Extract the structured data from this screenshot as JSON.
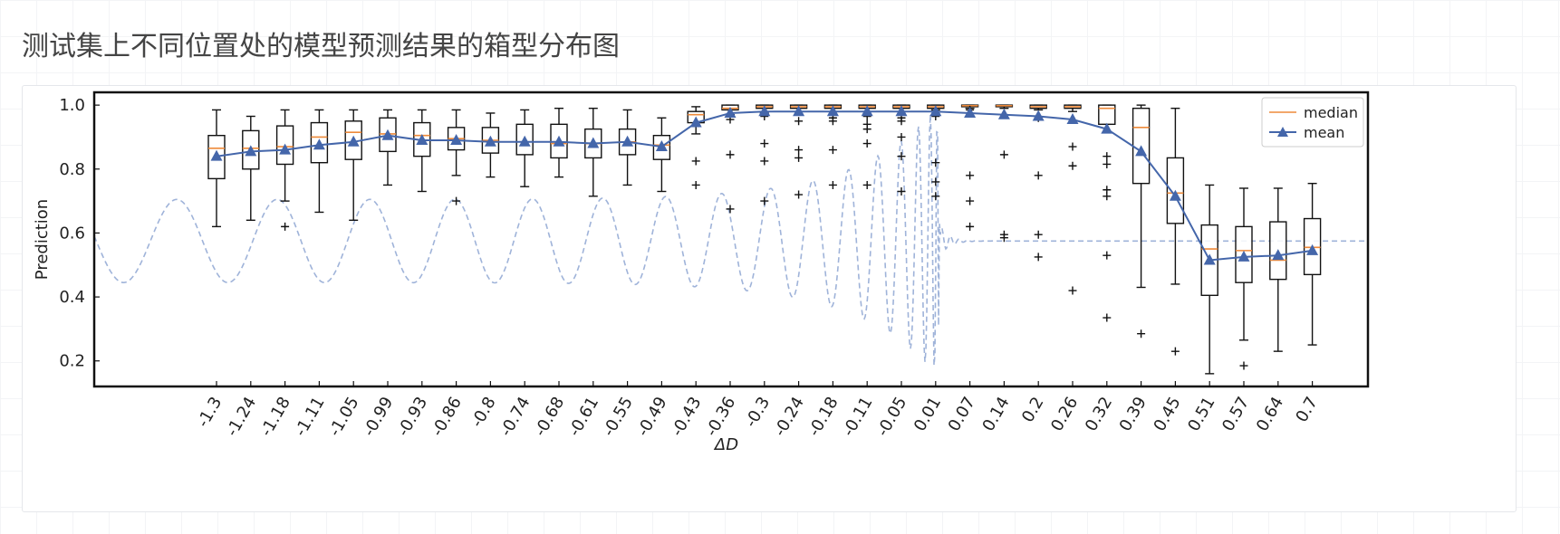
{
  "page": {
    "title": "测试集上不同位置处的模型预测结果的箱型分布图"
  },
  "chart_data": {
    "type": "box",
    "xlabel": "ΔD",
    "ylabel": "Prediction",
    "ylim": [
      0.12,
      1.04
    ],
    "yticks": [
      "0.2",
      "0.4",
      "0.6",
      "0.8",
      "1.0"
    ],
    "colors": {
      "median": "#ee8a3a",
      "mean": "#4466aa",
      "background_wave": "#9fb3d9"
    },
    "legend": {
      "position": "top-right",
      "entries": [
        "median",
        "mean"
      ]
    },
    "categories": [
      "-1.3",
      "-1.24",
      "-1.18",
      "-1.11",
      "-1.05",
      "-0.99",
      "-0.93",
      "-0.86",
      "-0.8",
      "-0.74",
      "-0.68",
      "-0.61",
      "-0.55",
      "-0.49",
      "-0.43",
      "-0.36",
      "-0.3",
      "-0.24",
      "-0.18",
      "-0.11",
      "-0.05",
      "0.01",
      "0.07",
      "0.14",
      "0.2",
      "0.26",
      "0.32",
      "0.39",
      "0.45",
      "0.51",
      "0.57",
      "0.64",
      "0.7"
    ],
    "boxes": [
      {
        "wlo": 0.62,
        "q1": 0.77,
        "med": 0.865,
        "q3": 0.905,
        "whi": 0.985,
        "mean": 0.84,
        "out": []
      },
      {
        "wlo": 0.64,
        "q1": 0.8,
        "med": 0.865,
        "q3": 0.92,
        "whi": 0.965,
        "mean": 0.855,
        "out": []
      },
      {
        "wlo": 0.7,
        "q1": 0.815,
        "med": 0.87,
        "q3": 0.935,
        "whi": 0.985,
        "mean": 0.86,
        "out": [
          0.62
        ]
      },
      {
        "wlo": 0.665,
        "q1": 0.82,
        "med": 0.9,
        "q3": 0.945,
        "whi": 0.985,
        "mean": 0.875,
        "out": []
      },
      {
        "wlo": 0.64,
        "q1": 0.83,
        "med": 0.915,
        "q3": 0.95,
        "whi": 0.985,
        "mean": 0.885,
        "out": []
      },
      {
        "wlo": 0.75,
        "q1": 0.855,
        "med": 0.91,
        "q3": 0.96,
        "whi": 0.985,
        "mean": 0.905,
        "out": []
      },
      {
        "wlo": 0.73,
        "q1": 0.84,
        "med": 0.905,
        "q3": 0.945,
        "whi": 0.985,
        "mean": 0.89,
        "out": []
      },
      {
        "wlo": 0.78,
        "q1": 0.86,
        "med": 0.895,
        "q3": 0.93,
        "whi": 0.985,
        "mean": 0.89,
        "out": [
          0.7
        ]
      },
      {
        "wlo": 0.775,
        "q1": 0.85,
        "med": 0.89,
        "q3": 0.93,
        "whi": 0.975,
        "mean": 0.885,
        "out": []
      },
      {
        "wlo": 0.745,
        "q1": 0.845,
        "med": 0.885,
        "q3": 0.94,
        "whi": 0.985,
        "mean": 0.885,
        "out": []
      },
      {
        "wlo": 0.775,
        "q1": 0.835,
        "med": 0.88,
        "q3": 0.94,
        "whi": 0.99,
        "mean": 0.885,
        "out": []
      },
      {
        "wlo": 0.715,
        "q1": 0.835,
        "med": 0.88,
        "q3": 0.925,
        "whi": 0.99,
        "mean": 0.88,
        "out": []
      },
      {
        "wlo": 0.75,
        "q1": 0.845,
        "med": 0.885,
        "q3": 0.925,
        "whi": 0.985,
        "mean": 0.885,
        "out": []
      },
      {
        "wlo": 0.73,
        "q1": 0.83,
        "med": 0.875,
        "q3": 0.905,
        "whi": 0.96,
        "mean": 0.87,
        "out": []
      },
      {
        "wlo": 0.91,
        "q1": 0.945,
        "med": 0.97,
        "q3": 0.98,
        "whi": 0.995,
        "mean": 0.945,
        "out": [
          0.825,
          0.75
        ]
      },
      {
        "wlo": 0.97,
        "q1": 0.985,
        "med": 0.99,
        "q3": 1.0,
        "whi": 1.0,
        "mean": 0.975,
        "out": [
          0.955,
          0.845,
          0.675
        ]
      },
      {
        "wlo": 0.975,
        "q1": 0.99,
        "med": 0.995,
        "q3": 1.0,
        "whi": 1.0,
        "mean": 0.98,
        "out": [
          0.965,
          0.88,
          0.825,
          0.7
        ]
      },
      {
        "wlo": 0.98,
        "q1": 0.99,
        "med": 0.995,
        "q3": 1.0,
        "whi": 1.0,
        "mean": 0.98,
        "out": [
          0.95,
          0.86,
          0.835,
          0.72
        ]
      },
      {
        "wlo": 0.98,
        "q1": 0.99,
        "med": 0.995,
        "q3": 1.0,
        "whi": 1.0,
        "mean": 0.98,
        "out": [
          0.96,
          0.95,
          0.86,
          0.75
        ]
      },
      {
        "wlo": 0.98,
        "q1": 0.99,
        "med": 0.995,
        "q3": 1.0,
        "whi": 1.0,
        "mean": 0.98,
        "out": [
          0.965,
          0.94,
          0.925,
          0.88,
          0.75
        ]
      },
      {
        "wlo": 0.98,
        "q1": 0.99,
        "med": 0.995,
        "q3": 1.0,
        "whi": 1.0,
        "mean": 0.98,
        "out": [
          0.96,
          0.95,
          0.9,
          0.84,
          0.73
        ]
      },
      {
        "wlo": 0.985,
        "q1": 0.99,
        "med": 0.995,
        "q3": 1.0,
        "whi": 1.0,
        "mean": 0.98,
        "out": [
          0.965,
          0.82,
          0.76,
          0.715
        ]
      },
      {
        "wlo": 0.99,
        "q1": 0.995,
        "med": 0.998,
        "q3": 1.0,
        "whi": 1.0,
        "mean": 0.975,
        "out": [
          0.985,
          0.78,
          0.7,
          0.62
        ]
      },
      {
        "wlo": 0.99,
        "q1": 0.995,
        "med": 0.998,
        "q3": 1.0,
        "whi": 1.0,
        "mean": 0.97,
        "out": [
          0.845,
          0.595,
          0.585
        ]
      },
      {
        "wlo": 0.985,
        "q1": 0.99,
        "med": 0.995,
        "q3": 1.0,
        "whi": 1.0,
        "mean": 0.965,
        "out": [
          0.96,
          0.78,
          0.595,
          0.525
        ]
      },
      {
        "wlo": 0.98,
        "q1": 0.99,
        "med": 0.995,
        "q3": 1.0,
        "whi": 1.0,
        "mean": 0.955,
        "out": [
          0.87,
          0.81,
          0.42
        ]
      },
      {
        "wlo": 0.94,
        "q1": 0.94,
        "med": 0.99,
        "q3": 1.0,
        "whi": 1.0,
        "mean": 0.925,
        "out": [
          0.84,
          0.815,
          0.735,
          0.715,
          0.53,
          0.335
        ]
      },
      {
        "wlo": 0.43,
        "q1": 0.755,
        "med": 0.93,
        "q3": 0.99,
        "whi": 1.0,
        "mean": 0.855,
        "out": [
          0.285
        ]
      },
      {
        "wlo": 0.44,
        "q1": 0.63,
        "med": 0.725,
        "q3": 0.835,
        "whi": 0.99,
        "mean": 0.715,
        "out": [
          0.23
        ]
      },
      {
        "wlo": 0.16,
        "q1": 0.405,
        "med": 0.55,
        "q3": 0.625,
        "whi": 0.75,
        "mean": 0.515,
        "out": []
      },
      {
        "wlo": 0.265,
        "q1": 0.445,
        "med": 0.545,
        "q3": 0.62,
        "whi": 0.74,
        "mean": 0.525,
        "out": [
          0.185
        ]
      },
      {
        "wlo": 0.23,
        "q1": 0.455,
        "med": 0.515,
        "q3": 0.635,
        "whi": 0.74,
        "mean": 0.53,
        "out": []
      },
      {
        "wlo": 0.25,
        "q1": 0.47,
        "med": 0.555,
        "q3": 0.645,
        "whi": 0.755,
        "mean": 0.545,
        "out": []
      }
    ]
  }
}
